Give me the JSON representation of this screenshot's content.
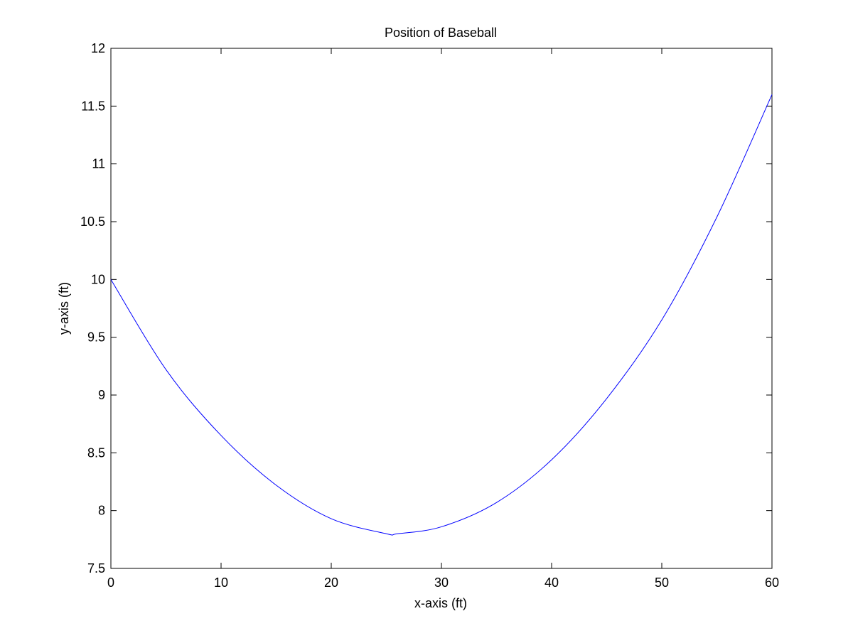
{
  "chart_data": {
    "type": "line",
    "title": "Position of Baseball",
    "xlabel": "x-axis (ft)",
    "ylabel": "y-axis (ft)",
    "xlim": [
      0,
      60
    ],
    "ylim": [
      7.5,
      12
    ],
    "xticks": [
      0,
      10,
      20,
      30,
      40,
      50,
      60
    ],
    "yticks": [
      7.5,
      8,
      8.5,
      9,
      9.5,
      10,
      10.5,
      11,
      11.5,
      12
    ],
    "xtick_labels": [
      "0",
      "10",
      "20",
      "30",
      "40",
      "50",
      "60"
    ],
    "ytick_labels": [
      "7.5",
      "8",
      "8.5",
      "9",
      "9.5",
      "10",
      "10.5",
      "11",
      "11.5",
      "12"
    ],
    "grid": false,
    "series": [
      {
        "color": "#0000ff",
        "x": [
          0,
          5,
          10,
          15,
          20,
          25,
          26,
          30,
          35,
          40,
          45,
          50,
          55,
          60
        ],
        "y": [
          10.0,
          9.22,
          8.65,
          8.22,
          7.93,
          7.8,
          7.8,
          7.86,
          8.07,
          8.44,
          8.97,
          9.65,
          10.54,
          11.6
        ]
      }
    ],
    "colors": {
      "line": "#0000ff",
      "axes": "#000000",
      "background": "#ffffff"
    }
  }
}
